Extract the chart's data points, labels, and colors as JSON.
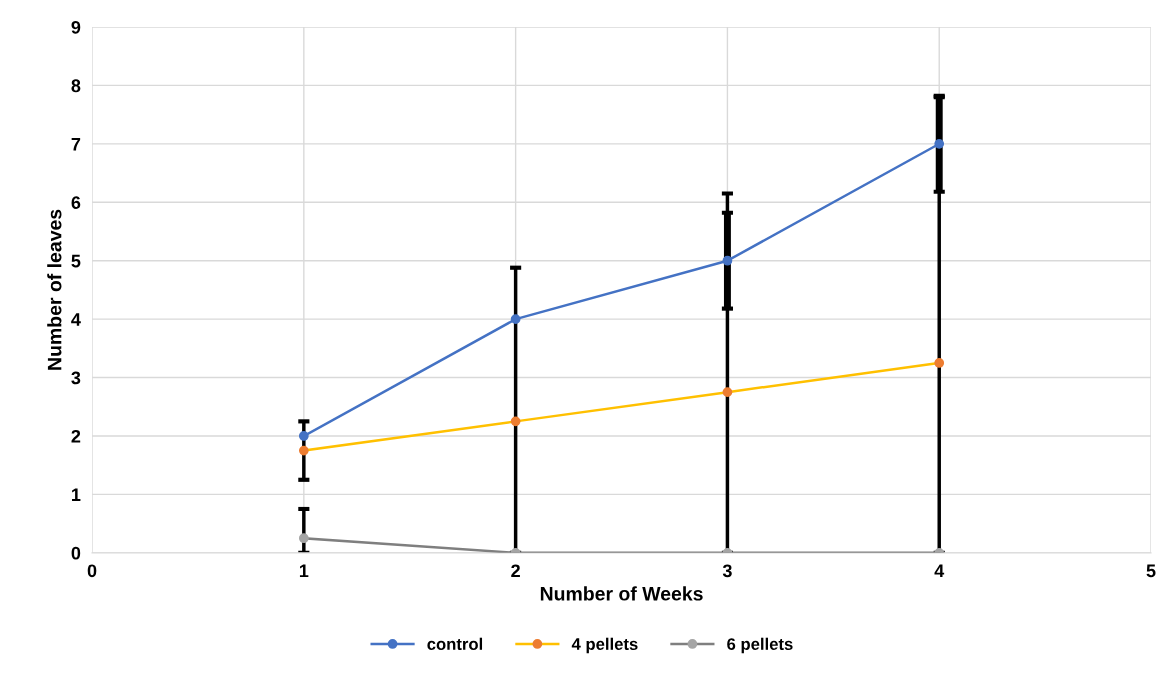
{
  "chart_data": {
    "type": "line",
    "xlabel": "Number of Weeks",
    "ylabel": "Number of leaves",
    "x": [
      1,
      2,
      3,
      4
    ],
    "xlim": [
      0,
      5
    ],
    "xticks": [
      0,
      1,
      2,
      3,
      4,
      5
    ],
    "ylim": [
      0,
      9
    ],
    "yticks": [
      0,
      1,
      2,
      3,
      4,
      5,
      6,
      7,
      8,
      9
    ],
    "grid": true,
    "legend": "bottom",
    "marker": "circle",
    "line_style": "solid",
    "series": [
      {
        "name": "control",
        "color": "#4472c4",
        "values": [
          2,
          4,
          5,
          7
        ],
        "errors": [
          null,
          null,
          [
            4.18,
            5.82
          ],
          [
            6.18,
            7.82
          ]
        ]
      },
      {
        "name": "4 pellets",
        "color": "#ffc000",
        "colors": [
          "#ed7d31",
          "#ed7d31",
          "#ed7d31",
          "#ed7d31"
        ],
        "values": [
          1.75,
          2.25,
          2.75,
          3.25
        ],
        "errors": [
          [
            1.25,
            2.25
          ],
          [
            0,
            4.88
          ],
          [
            0,
            6.15
          ],
          [
            0,
            7.8
          ]
        ]
      },
      {
        "name": "6 pellets",
        "color": "#7f7f7f",
        "colors": [
          "#a5a5a5",
          "#a5a5a5",
          "#a5a5a5",
          "#a5a5a5"
        ],
        "values": [
          0.25,
          0,
          0,
          0
        ],
        "errors": [
          [
            0,
            0.75
          ],
          null,
          null,
          null
        ]
      }
    ]
  }
}
